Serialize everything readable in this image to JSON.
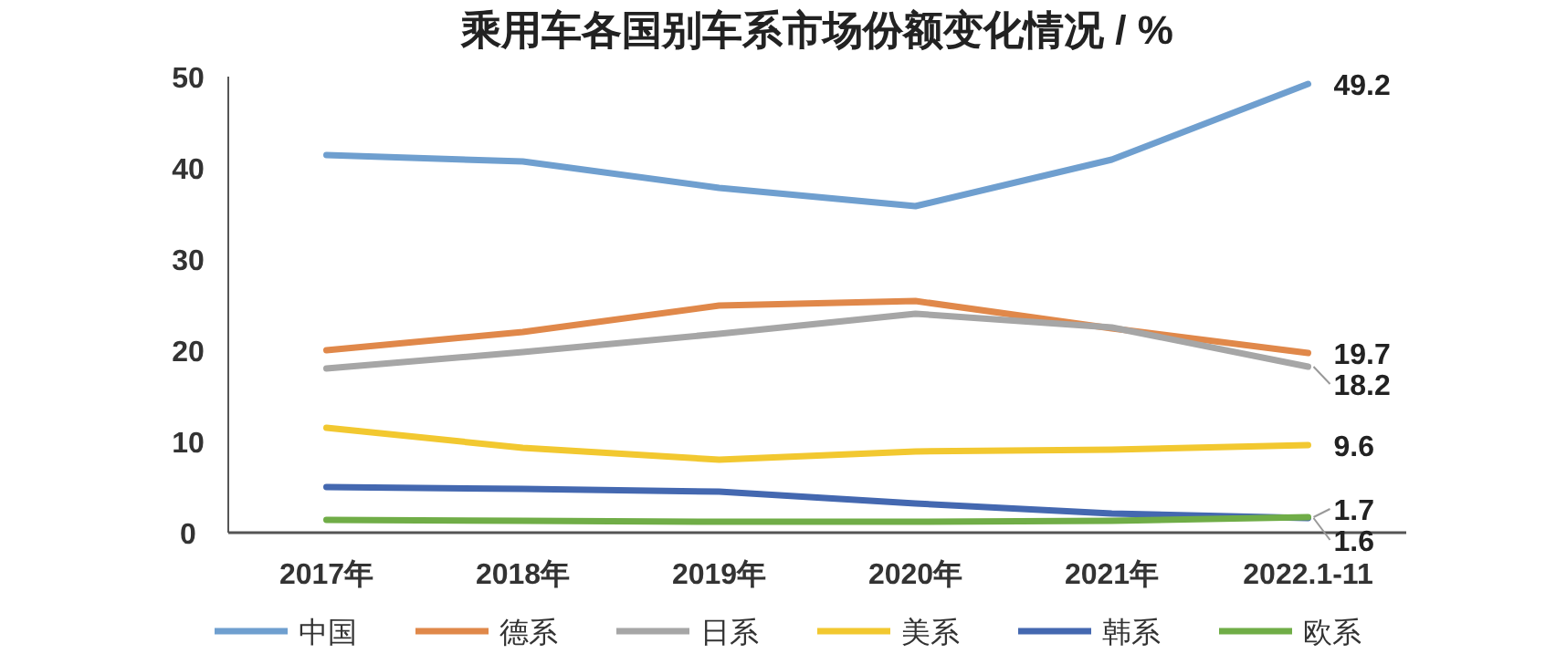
{
  "chart_data": {
    "type": "line",
    "title": "乘用车各国别车系市场份额变化情况 / %",
    "categories": [
      "2017年",
      "2018年",
      "2019年",
      "2020年",
      "2021年",
      "2022.1-11"
    ],
    "ylim": [
      0,
      50
    ],
    "yticks": [
      0,
      10,
      20,
      30,
      40,
      50
    ],
    "grid": false,
    "legend": "bottom",
    "marker": "none",
    "line_style": "solid",
    "series": [
      {
        "name": "中国",
        "color": "#6f9fcf",
        "values": [
          41.4,
          40.7,
          37.8,
          35.8,
          40.9,
          49.2
        ],
        "value_labels": [
          null,
          null,
          null,
          null,
          null,
          "49.2"
        ]
      },
      {
        "name": "德系",
        "color": "#e0884a",
        "values": [
          20.0,
          22.0,
          24.9,
          25.4,
          22.4,
          19.7
        ],
        "value_labels": [
          null,
          null,
          null,
          null,
          null,
          "19.7"
        ]
      },
      {
        "name": "日系",
        "color": "#a6a6a6",
        "values": [
          18.0,
          19.8,
          21.8,
          24.0,
          22.5,
          18.2
        ],
        "value_labels": [
          null,
          null,
          null,
          null,
          null,
          "18.2"
        ]
      },
      {
        "name": "美系",
        "color": "#f2c830",
        "values": [
          11.5,
          9.3,
          8.0,
          8.9,
          9.1,
          9.6
        ],
        "value_labels": [
          null,
          null,
          null,
          null,
          null,
          "9.6"
        ]
      },
      {
        "name": "韩系",
        "color": "#4468b0",
        "values": [
          5.0,
          4.8,
          4.5,
          3.2,
          2.1,
          1.6
        ],
        "value_labels": [
          null,
          null,
          null,
          null,
          null,
          "1.6"
        ]
      },
      {
        "name": "欧系",
        "color": "#70ad47",
        "values": [
          1.4,
          1.3,
          1.2,
          1.2,
          1.3,
          1.7
        ],
        "value_labels": [
          null,
          null,
          null,
          null,
          null,
          "1.7"
        ]
      }
    ]
  }
}
